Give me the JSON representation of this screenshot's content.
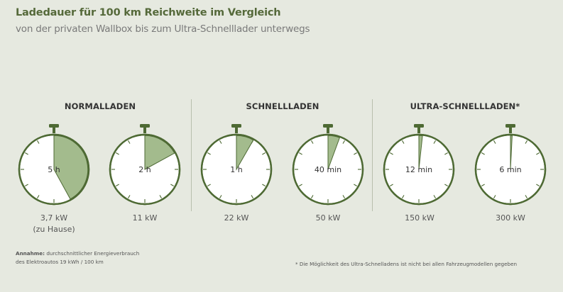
{
  "header": {
    "title": "Ladedauer für 100 km Reichweite im Vergleich",
    "subtitle": "von der privaten Wallbox bis zum Ultra-Schnelllader unterwegs"
  },
  "groups": [
    {
      "label": "NORMALLADEN"
    },
    {
      "label": "SCHNELLLADEN"
    },
    {
      "label": "ULTRA-SCHNELLLADEN*"
    }
  ],
  "colors": {
    "ring": "#4e6a34",
    "fill": "#a3bb8d",
    "face": "#ffffff",
    "background": "#e6e9e0"
  },
  "chart_data": {
    "type": "stopwatch",
    "items": [
      {
        "group": "NORMALLADEN",
        "time_label": "5 h",
        "power_label": "3,7 kW",
        "note": "(zu Hause)",
        "dial_fraction": 0.42
      },
      {
        "group": "NORMALLADEN",
        "time_label": "2 h",
        "power_label": "11 kW",
        "note": "",
        "dial_fraction": 0.17
      },
      {
        "group": "SCHNELLLADEN",
        "time_label": "1 h",
        "power_label": "22 kW",
        "note": "",
        "dial_fraction": 0.083
      },
      {
        "group": "SCHNELLLADEN",
        "time_label": "40 min",
        "power_label": "50 kW",
        "note": "",
        "dial_fraction": 0.056
      },
      {
        "group": "ULTRA-SCHNELLLADEN*",
        "time_label": "12 min",
        "power_label": "150 kW",
        "note": "",
        "dial_fraction": 0.017
      },
      {
        "group": "ULTRA-SCHNELLLADEN*",
        "time_label": "6 min",
        "power_label": "300 kW",
        "note": "",
        "dial_fraction": 0.008
      }
    ]
  },
  "footnotes": {
    "assumption_label": "Annahme:",
    "assumption_text_1": "durchschnittlicher Energieverbrauch",
    "assumption_text_2": "des Elektroautos 19 kWh / 100 km",
    "ultra_note": "* Die Möglichkeit des Ultra-Schnelladens ist nicht bei allen Fahrzeugmodellen gegeben"
  }
}
